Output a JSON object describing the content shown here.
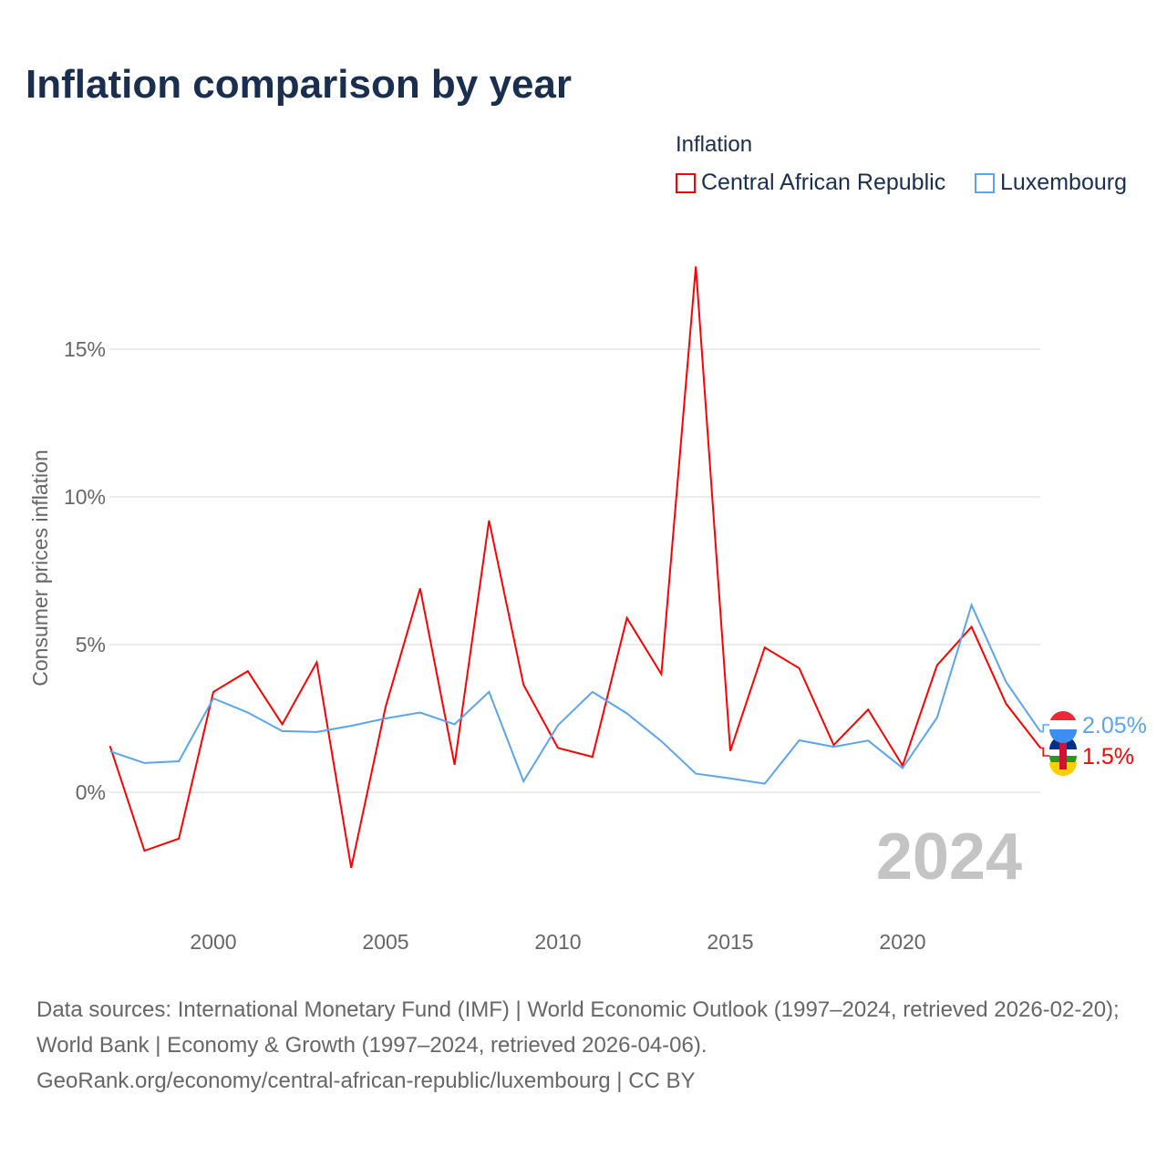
{
  "chart_data": {
    "type": "line",
    "title": "Inflation comparison by year",
    "ylabel": "Consumer prices inflation",
    "xlabel": "",
    "legend_title": "Inflation",
    "legend_position": "top-right",
    "xlim": [
      1997,
      2024
    ],
    "ylim": [
      -4.3,
      18.5
    ],
    "x_ticks": [
      2000,
      2005,
      2010,
      2015,
      2020
    ],
    "x_tick_labels": [
      "2000",
      "2005",
      "2010",
      "2015",
      "2020"
    ],
    "y_ticks": [
      0,
      5,
      10,
      15
    ],
    "y_tick_labels": [
      "0%",
      "5%",
      "10%",
      "15%"
    ],
    "grid": true,
    "year_watermark": "2024",
    "x": [
      1997,
      1998,
      1999,
      2000,
      2001,
      2002,
      2003,
      2004,
      2005,
      2006,
      2007,
      2008,
      2009,
      2010,
      2011,
      2012,
      2013,
      2014,
      2015,
      2016,
      2017,
      2018,
      2019,
      2020,
      2021,
      2022,
      2023,
      2024
    ],
    "series": [
      {
        "name": "Central African Republic",
        "color": "#ff0000",
        "end_label": "1.5%",
        "values": [
          1.57,
          -1.98,
          -1.57,
          3.4,
          4.1,
          2.3,
          4.4,
          -2.56,
          2.9,
          6.9,
          0.93,
          9.2,
          3.64,
          1.5,
          1.2,
          5.9,
          4.0,
          17.8,
          1.4,
          4.9,
          4.2,
          1.6,
          2.8,
          0.9,
          4.3,
          5.6,
          3.0,
          1.5
        ]
      },
      {
        "name": "Luxembourg",
        "color": "#5aa5ec",
        "end_label": "2.05%",
        "values": [
          1.39,
          0.99,
          1.05,
          3.18,
          2.7,
          2.07,
          2.04,
          2.25,
          2.5,
          2.7,
          2.3,
          3.4,
          0.37,
          2.27,
          3.4,
          2.67,
          1.73,
          0.63,
          0.47,
          0.29,
          1.76,
          1.54,
          1.75,
          0.82,
          2.53,
          6.34,
          3.74,
          2.05
        ]
      }
    ]
  },
  "sources": {
    "line1": "Data sources: International Monetary Fund (IMF) | World Economic Outlook (1997–2024, retrieved 2026-02-20); World Bank | Economy & Growth (1997–2024, retrieved 2026-04-06).",
    "line2": "GeoRank.org/economy/central-african-republic/luxembourg | CC BY"
  }
}
